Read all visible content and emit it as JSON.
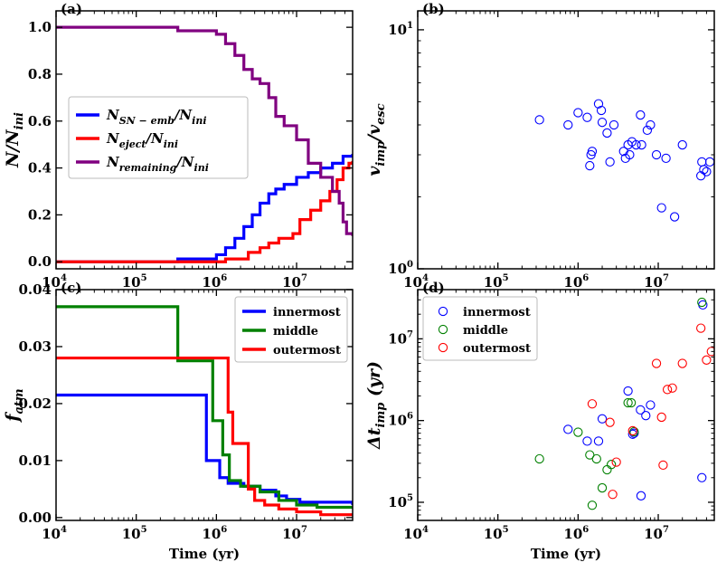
{
  "chart_data": [
    {
      "id": "a",
      "type": "line",
      "panel_label": "(a)",
      "xscale": "log",
      "xlim": [
        10000,
        50000000
      ],
      "yscale": "linear",
      "ylim": [
        -0.03,
        1.07
      ],
      "xticks": [
        {
          "v": 10000,
          "b": "10",
          "e": "4"
        },
        {
          "v": 100000,
          "b": "10",
          "e": "5"
        },
        {
          "v": 1000000,
          "b": "10",
          "e": "6"
        },
        {
          "v": 10000000,
          "b": "10",
          "e": "7"
        }
      ],
      "yticks": [
        {
          "v": 0.0,
          "t": "0.0"
        },
        {
          "v": 0.2,
          "t": "0.2"
        },
        {
          "v": 0.4,
          "t": "0.4"
        },
        {
          "v": 0.6,
          "t": "0.6"
        },
        {
          "v": 0.8,
          "t": "0.8"
        },
        {
          "v": 1.0,
          "t": "1.0"
        }
      ],
      "ylabel": {
        "main": "N/N",
        "sub": "ini"
      },
      "xlabel": "",
      "legend": {
        "position": "center-left",
        "style": "math"
      },
      "series": [
        {
          "name": "N_SN-emb/N_ini",
          "label_main": "N",
          "label_sub": "SN − emb",
          "label_tail": "/N",
          "label_tail_sub": "ini",
          "color": "#0000ff",
          "step": true,
          "points": [
            [
              10000,
              0
            ],
            [
              330000,
              0
            ],
            [
              330000,
              0.012
            ],
            [
              700000,
              0.012
            ],
            [
              1000000,
              0.03
            ],
            [
              1300000,
              0.06
            ],
            [
              1700000,
              0.1
            ],
            [
              2200000,
              0.15
            ],
            [
              2800000,
              0.2
            ],
            [
              3500000,
              0.25
            ],
            [
              4500000,
              0.29
            ],
            [
              5500000,
              0.31
            ],
            [
              7000000,
              0.33
            ],
            [
              10000000,
              0.36
            ],
            [
              14000000,
              0.38
            ],
            [
              20000000,
              0.4
            ],
            [
              28000000,
              0.42
            ],
            [
              38000000,
              0.45
            ],
            [
              50000000,
              0.46
            ]
          ]
        },
        {
          "name": "N_eject/N_ini",
          "label_main": "N",
          "label_sub": "eject",
          "label_tail": "/N",
          "label_tail_sub": "ini",
          "color": "#ff0000",
          "step": true,
          "points": [
            [
              10000,
              0
            ],
            [
              1300000,
              0
            ],
            [
              1300000,
              0.012
            ],
            [
              2000000,
              0.012
            ],
            [
              2500000,
              0.04
            ],
            [
              3500000,
              0.06
            ],
            [
              4500000,
              0.08
            ],
            [
              6000000,
              0.1
            ],
            [
              9000000,
              0.12
            ],
            [
              11000000,
              0.18
            ],
            [
              15000000,
              0.22
            ],
            [
              20000000,
              0.26
            ],
            [
              26000000,
              0.3
            ],
            [
              32000000,
              0.35
            ],
            [
              38000000,
              0.4
            ],
            [
              45000000,
              0.42
            ],
            [
              50000000,
              0.43
            ]
          ]
        },
        {
          "name": "N_remaining/N_ini",
          "label_main": "N",
          "label_sub": "remaining",
          "label_tail": "/N",
          "label_tail_sub": "ini",
          "color": "#800080",
          "step": true,
          "points": [
            [
              10000,
              1.0
            ],
            [
              330000,
              1.0
            ],
            [
              330000,
              0.985
            ],
            [
              700000,
              0.985
            ],
            [
              1000000,
              0.97
            ],
            [
              1300000,
              0.93
            ],
            [
              1700000,
              0.88
            ],
            [
              2200000,
              0.82
            ],
            [
              2800000,
              0.78
            ],
            [
              3500000,
              0.76
            ],
            [
              4500000,
              0.7
            ],
            [
              5500000,
              0.62
            ],
            [
              7000000,
              0.58
            ],
            [
              10000000,
              0.52
            ],
            [
              14000000,
              0.42
            ],
            [
              20000000,
              0.36
            ],
            [
              28000000,
              0.3
            ],
            [
              34000000,
              0.25
            ],
            [
              38000000,
              0.17
            ],
            [
              42000000,
              0.12
            ],
            [
              50000000,
              0.11
            ]
          ]
        }
      ]
    },
    {
      "id": "b",
      "type": "scatter",
      "panel_label": "(b)",
      "xscale": "log",
      "xlim": [
        10000,
        50000000
      ],
      "yscale": "log",
      "ylim": [
        1,
        12
      ],
      "xticks": [
        {
          "v": 10000,
          "b": "10",
          "e": "4"
        },
        {
          "v": 100000,
          "b": "10",
          "e": "5"
        },
        {
          "v": 1000000,
          "b": "10",
          "e": "6"
        },
        {
          "v": 10000000,
          "b": "10",
          "e": "7"
        }
      ],
      "yticks": [
        {
          "v": 1,
          "b": "10",
          "e": "0"
        },
        {
          "v": 10,
          "b": "10",
          "e": "1"
        }
      ],
      "ylabel": {
        "main": "v",
        "sub": "imp",
        "tail": "/v",
        "tail_sub": "esc"
      },
      "xlabel": "",
      "series": [
        {
          "name": "v_imp/v_esc",
          "color": "#0000ff",
          "marker": "circle",
          "points": [
            [
              330000,
              4.2
            ],
            [
              750000,
              4.0
            ],
            [
              1000000,
              4.5
            ],
            [
              1300000,
              4.3
            ],
            [
              1400000,
              2.7
            ],
            [
              1450000,
              3.0
            ],
            [
              1500000,
              3.1
            ],
            [
              1800000,
              4.9
            ],
            [
              1950000,
              4.6
            ],
            [
              2000000,
              4.1
            ],
            [
              2300000,
              3.7
            ],
            [
              2500000,
              2.8
            ],
            [
              2800000,
              4.0
            ],
            [
              3700000,
              3.1
            ],
            [
              3900000,
              2.9
            ],
            [
              4200000,
              3.3
            ],
            [
              4400000,
              3.0
            ],
            [
              4700000,
              3.4
            ],
            [
              5300000,
              3.3
            ],
            [
              6000000,
              4.4
            ],
            [
              6200000,
              3.3
            ],
            [
              7300000,
              3.8
            ],
            [
              8000000,
              4.0
            ],
            [
              9500000,
              3.0
            ],
            [
              11000000,
              1.8
            ],
            [
              12500000,
              2.9
            ],
            [
              16000000,
              1.65
            ],
            [
              20000000,
              3.3
            ],
            [
              34000000,
              2.45
            ],
            [
              35000000,
              2.8
            ],
            [
              37000000,
              2.6
            ],
            [
              40000000,
              2.55
            ],
            [
              44000000,
              2.8
            ]
          ]
        }
      ]
    },
    {
      "id": "c",
      "type": "line",
      "panel_label": "(c)",
      "xscale": "log",
      "xlim": [
        10000,
        50000000
      ],
      "yscale": "linear",
      "ylim": [
        -0.0005,
        0.04
      ],
      "xticks": [
        {
          "v": 10000,
          "b": "10",
          "e": "4"
        },
        {
          "v": 100000,
          "b": "10",
          "e": "5"
        },
        {
          "v": 1000000,
          "b": "10",
          "e": "6"
        },
        {
          "v": 10000000,
          "b": "10",
          "e": "7"
        }
      ],
      "yticks": [
        {
          "v": 0.0,
          "t": "0.00"
        },
        {
          "v": 0.01,
          "t": "0.01"
        },
        {
          "v": 0.02,
          "t": "0.02"
        },
        {
          "v": 0.03,
          "t": "0.03"
        },
        {
          "v": 0.04,
          "t": "0.04"
        }
      ],
      "ylabel": {
        "main": "f",
        "sub": "atm"
      },
      "xlabel": "Time (yr)",
      "legend": {
        "position": "top-right",
        "style": "line"
      },
      "series": [
        {
          "name": "innermost",
          "color": "#0000ff",
          "step": true,
          "points": [
            [
              10000,
              0.0215
            ],
            [
              750000,
              0.0215
            ],
            [
              750000,
              0.01
            ],
            [
              1100000,
              0.01
            ],
            [
              1100000,
              0.007
            ],
            [
              1400000,
              0.007
            ],
            [
              1400000,
              0.006
            ],
            [
              2200000,
              0.006
            ],
            [
              2200000,
              0.0055
            ],
            [
              3500000,
              0.0055
            ],
            [
              3500000,
              0.0048
            ],
            [
              5500000,
              0.0048
            ],
            [
              5500000,
              0.0038
            ],
            [
              7500000,
              0.0038
            ],
            [
              7500000,
              0.0032
            ],
            [
              11000000,
              0.0032
            ],
            [
              11000000,
              0.0027
            ],
            [
              50000000,
              0.0027
            ],
            [
              50000000,
              0.0022
            ]
          ]
        },
        {
          "name": "middle",
          "color": "#008000",
          "step": true,
          "points": [
            [
              10000,
              0.037
            ],
            [
              330000,
              0.037
            ],
            [
              330000,
              0.0275
            ],
            [
              900000,
              0.0275
            ],
            [
              900000,
              0.017
            ],
            [
              1200000,
              0.017
            ],
            [
              1200000,
              0.011
            ],
            [
              1450000,
              0.011
            ],
            [
              1450000,
              0.0065
            ],
            [
              2000000,
              0.0065
            ],
            [
              2000000,
              0.0055
            ],
            [
              3500000,
              0.0055
            ],
            [
              3500000,
              0.0045
            ],
            [
              6000000,
              0.0045
            ],
            [
              6000000,
              0.003
            ],
            [
              10000000,
              0.003
            ],
            [
              10000000,
              0.0022
            ],
            [
              18000000,
              0.0022
            ],
            [
              18000000,
              0.0018
            ],
            [
              50000000,
              0.0018
            ]
          ]
        },
        {
          "name": "outermost",
          "color": "#ff0000",
          "step": true,
          "points": [
            [
              10000,
              0.028
            ],
            [
              1400000,
              0.028
            ],
            [
              1400000,
              0.0185
            ],
            [
              1600000,
              0.0185
            ],
            [
              1600000,
              0.013
            ],
            [
              2500000,
              0.013
            ],
            [
              2500000,
              0.005
            ],
            [
              3000000,
              0.005
            ],
            [
              3000000,
              0.003
            ],
            [
              4000000,
              0.003
            ],
            [
              4000000,
              0.0022
            ],
            [
              6000000,
              0.0022
            ],
            [
              6000000,
              0.0015
            ],
            [
              10000000,
              0.0015
            ],
            [
              10000000,
              0.001
            ],
            [
              20000000,
              0.001
            ],
            [
              20000000,
              0.0005
            ],
            [
              50000000,
              0.0005
            ]
          ]
        }
      ]
    },
    {
      "id": "d",
      "type": "scatter",
      "panel_label": "(d)",
      "xscale": "log",
      "xlim": [
        10000,
        50000000
      ],
      "yscale": "log",
      "ylim": [
        60000,
        40000000
      ],
      "xticks": [
        {
          "v": 10000,
          "b": "10",
          "e": "4"
        },
        {
          "v": 100000,
          "b": "10",
          "e": "5"
        },
        {
          "v": 1000000,
          "b": "10",
          "e": "6"
        },
        {
          "v": 10000000,
          "b": "10",
          "e": "7"
        }
      ],
      "yticks": [
        {
          "v": 100000,
          "b": "10",
          "e": "5"
        },
        {
          "v": 1000000,
          "b": "10",
          "e": "6"
        },
        {
          "v": 10000000,
          "b": "10",
          "e": "7"
        }
      ],
      "ylabel": {
        "main": "Δt",
        "sub": "imp",
        "tail": " (yr)"
      },
      "xlabel": "Time (yr)",
      "legend": {
        "position": "top-left",
        "style": "marker"
      },
      "series": [
        {
          "name": "innermost",
          "color": "#0000ff",
          "marker": "circle",
          "points": [
            [
              750000,
              780000
            ],
            [
              1300000,
              560000
            ],
            [
              1800000,
              560000
            ],
            [
              2000000,
              1050000
            ],
            [
              4200000,
              2300000
            ],
            [
              4800000,
              680000
            ],
            [
              5000000,
              700000
            ],
            [
              6000000,
              1350000
            ],
            [
              7000000,
              1150000
            ],
            [
              8000000,
              1550000
            ],
            [
              6100000,
              120000
            ],
            [
              35000000,
              200000
            ],
            [
              36000000,
              26000000
            ]
          ]
        },
        {
          "name": "middle",
          "color": "#008000",
          "marker": "circle",
          "points": [
            [
              330000,
              340000
            ],
            [
              1000000,
              720000
            ],
            [
              1400000,
              380000
            ],
            [
              1500000,
              92000
            ],
            [
              1700000,
              340000
            ],
            [
              2000000,
              150000
            ],
            [
              2300000,
              250000
            ],
            [
              2600000,
              290000
            ],
            [
              4200000,
              1650000
            ],
            [
              4600000,
              1650000
            ],
            [
              5000000,
              730000
            ],
            [
              35000000,
              28000000
            ]
          ]
        },
        {
          "name": "outermost",
          "color": "#ff0000",
          "marker": "circle",
          "points": [
            [
              1500000,
              1600000
            ],
            [
              2500000,
              950000
            ],
            [
              2700000,
              125000
            ],
            [
              3000000,
              310000
            ],
            [
              4800000,
              750000
            ],
            [
              9500000,
              5000000
            ],
            [
              11000000,
              1100000
            ],
            [
              11500000,
              285000
            ],
            [
              13000000,
              2400000
            ],
            [
              15000000,
              2500000
            ],
            [
              20000000,
              5000000
            ],
            [
              34000000,
              13500000
            ],
            [
              40000000,
              5500000
            ],
            [
              46000000,
              7000000
            ]
          ]
        }
      ]
    }
  ]
}
